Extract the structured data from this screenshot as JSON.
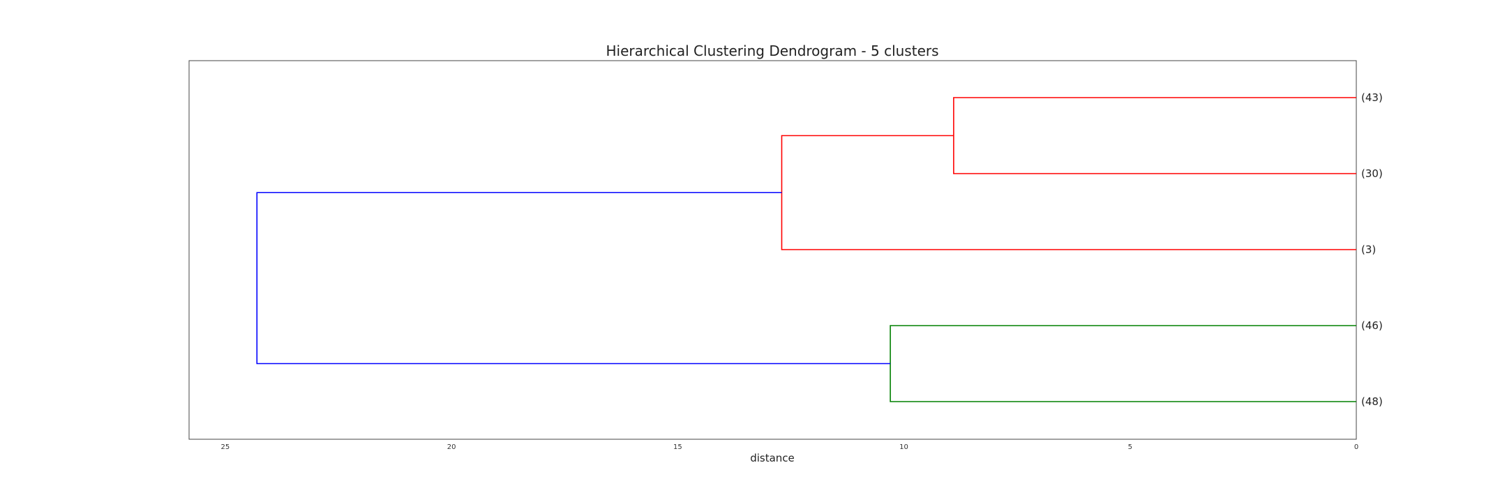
{
  "chart_data": {
    "type": "dendrogram",
    "title": "Hierarchical Clustering Dendrogram - 5 clusters",
    "xlabel": "distance",
    "ylabel": "",
    "orientation": "left",
    "xlim": [
      25.8,
      0
    ],
    "x_ticks": [
      25,
      20,
      15,
      10,
      5,
      0
    ],
    "grid": false,
    "leaves": [
      "(43)",
      "(30)",
      "(3)",
      "(46)",
      "(48)"
    ],
    "colors": {
      "red": "#ff0000",
      "green": "#008000",
      "blue": "#0000ff"
    },
    "links": [
      {
        "name": "merge-43-30",
        "children": [
          "(43)",
          "(30)"
        ],
        "height": 8.9,
        "color": "red"
      },
      {
        "name": "merge-red-3",
        "children": [
          "merge-43-30",
          "(3)"
        ],
        "height": 12.7,
        "color": "red"
      },
      {
        "name": "merge-46-48",
        "children": [
          "(46)",
          "(48)"
        ],
        "height": 10.3,
        "color": "green"
      },
      {
        "name": "merge-root",
        "children": [
          "merge-red-3",
          "merge-46-48"
        ],
        "height": 24.3,
        "color": "blue"
      }
    ]
  }
}
